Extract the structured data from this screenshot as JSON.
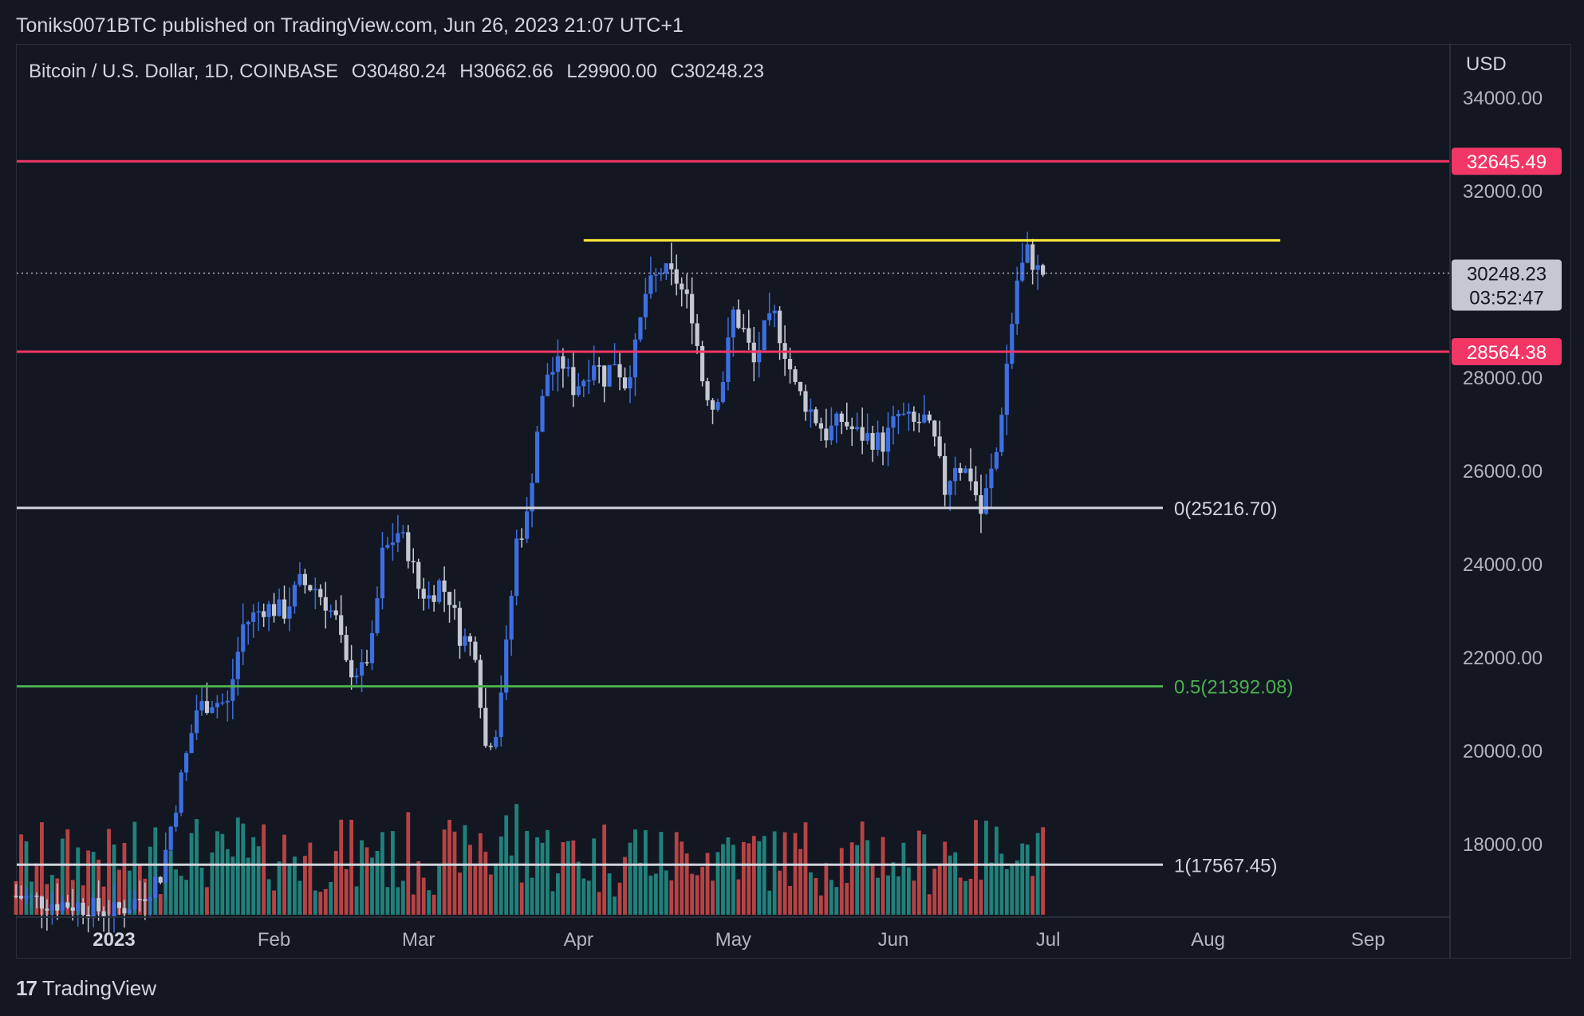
{
  "header": {
    "published": "Toniks0071BTC published on TradingView.com, Jun 26, 2023 21:07 UTC+1"
  },
  "legend": {
    "symbol": "Bitcoin / U.S. Dollar, 1D, COINBASE",
    "open": "O30480.24",
    "high": "H30662.66",
    "low": "L29900.00",
    "close": "C30248.23"
  },
  "price_axis": {
    "currency": "USD",
    "ticks": [
      "34000.00",
      "32000.00",
      "28000.00",
      "26000.00",
      "24000.00",
      "22000.00",
      "20000.00",
      "18000.00"
    ],
    "current_price": "30248.23",
    "countdown": "03:52:47"
  },
  "time_axis": {
    "ticks": [
      "2023",
      "Feb",
      "Mar",
      "Apr",
      "May",
      "Jun",
      "Jul",
      "Aug",
      "Sep"
    ]
  },
  "levels": [
    {
      "name": "resistance-top",
      "price": "32645.49",
      "color": "#f23666"
    },
    {
      "name": "resistance-mid",
      "price": "28564.38",
      "color": "#f23666"
    }
  ],
  "fib": [
    {
      "label": "0(25216.70)",
      "color": "#d1d4dc"
    },
    {
      "label": "0.5(21392.08)",
      "color": "#4caf50"
    },
    {
      "label": "1(17567.45)",
      "color": "#d1d4dc"
    }
  ],
  "colors": {
    "up": "#3d6fe0",
    "down": "#c3c8d3",
    "vol_up": "#26a69a",
    "vol_down": "#ef5350",
    "yellow": "#ffeb3b",
    "background": "#131722"
  },
  "chart_data": {
    "type": "candlestick",
    "title": "Bitcoin / U.S. Dollar, 1D, COINBASE",
    "ylim": [
      16500,
      35000
    ],
    "y_ticks": [
      34000,
      32000,
      28000,
      26000,
      24000,
      22000,
      20000,
      18000
    ],
    "x_ticks": [
      {
        "label": "2023",
        "day": 0
      },
      {
        "label": "Feb",
        "day": 31
      },
      {
        "label": "Mar",
        "day": 59
      },
      {
        "label": "Apr",
        "day": 90
      },
      {
        "label": "May",
        "day": 120
      },
      {
        "label": "Jun",
        "day": 151
      },
      {
        "label": "Jul",
        "day": 181
      },
      {
        "label": "Aug",
        "day": 212
      },
      {
        "label": "Sep",
        "day": 243
      }
    ],
    "horizontal_levels": [
      32645.49,
      28564.38
    ],
    "fib_levels": [
      25216.7,
      21392.08,
      17567.45
    ],
    "yellow_line": {
      "from_day": 91,
      "to_day": 226,
      "price": 30950
    },
    "close_path": [
      [
        -19,
        16900
      ],
      [
        -15,
        16800
      ],
      [
        -11,
        16750
      ],
      [
        -7,
        16700
      ],
      [
        -3,
        16600
      ],
      [
        0,
        16550
      ],
      [
        5,
        16850
      ],
      [
        9,
        17350
      ],
      [
        12,
        18900
      ],
      [
        14,
        19900
      ],
      [
        16,
        20900
      ],
      [
        19,
        21100
      ],
      [
        22,
        21000
      ],
      [
        25,
        22700
      ],
      [
        29,
        23100
      ],
      [
        33,
        23000
      ],
      [
        36,
        23600
      ],
      [
        39,
        23500
      ],
      [
        41,
        23200
      ],
      [
        43,
        22800
      ],
      [
        45,
        21800
      ],
      [
        48,
        21700
      ],
      [
        50,
        22300
      ],
      [
        52,
        24200
      ],
      [
        55,
        24700
      ],
      [
        57,
        24300
      ],
      [
        59,
        23500
      ],
      [
        61,
        23300
      ],
      [
        63,
        23600
      ],
      [
        65,
        23300
      ],
      [
        67,
        22500
      ],
      [
        70,
        22200
      ],
      [
        72,
        20100
      ],
      [
        74,
        20500
      ],
      [
        76,
        22200
      ],
      [
        78,
        24500
      ],
      [
        80,
        25000
      ],
      [
        82,
        26900
      ],
      [
        84,
        28100
      ],
      [
        87,
        28300
      ],
      [
        89,
        27800
      ],
      [
        91,
        28000
      ],
      [
        93,
        28400
      ],
      [
        95,
        28000
      ],
      [
        97,
        28400
      ],
      [
        99,
        27900
      ],
      [
        101,
        28600
      ],
      [
        103,
        29800
      ],
      [
        106,
        30300
      ],
      [
        109,
        30100
      ],
      [
        112,
        29400
      ],
      [
        114,
        28000
      ],
      [
        116,
        27400
      ],
      [
        118,
        28000
      ],
      [
        120,
        29400
      ],
      [
        122,
        29000
      ],
      [
        124,
        28300
      ],
      [
        126,
        29000
      ],
      [
        128,
        29300
      ],
      [
        130,
        28600
      ],
      [
        132,
        27800
      ],
      [
        135,
        27300
      ],
      [
        138,
        26800
      ],
      [
        141,
        27100
      ],
      [
        144,
        26800
      ],
      [
        147,
        26700
      ],
      [
        149,
        26600
      ],
      [
        152,
        27200
      ],
      [
        155,
        27000
      ],
      [
        157,
        27100
      ],
      [
        159,
        26600
      ],
      [
        161,
        25600
      ],
      [
        163,
        26200
      ],
      [
        166,
        25900
      ],
      [
        168,
        25100
      ],
      [
        171,
        26400
      ],
      [
        173,
        28300
      ],
      [
        175,
        30100
      ],
      [
        177,
        30700
      ],
      [
        179,
        30300
      ],
      [
        180,
        30248
      ]
    ],
    "volume_scale": "relative"
  }
}
